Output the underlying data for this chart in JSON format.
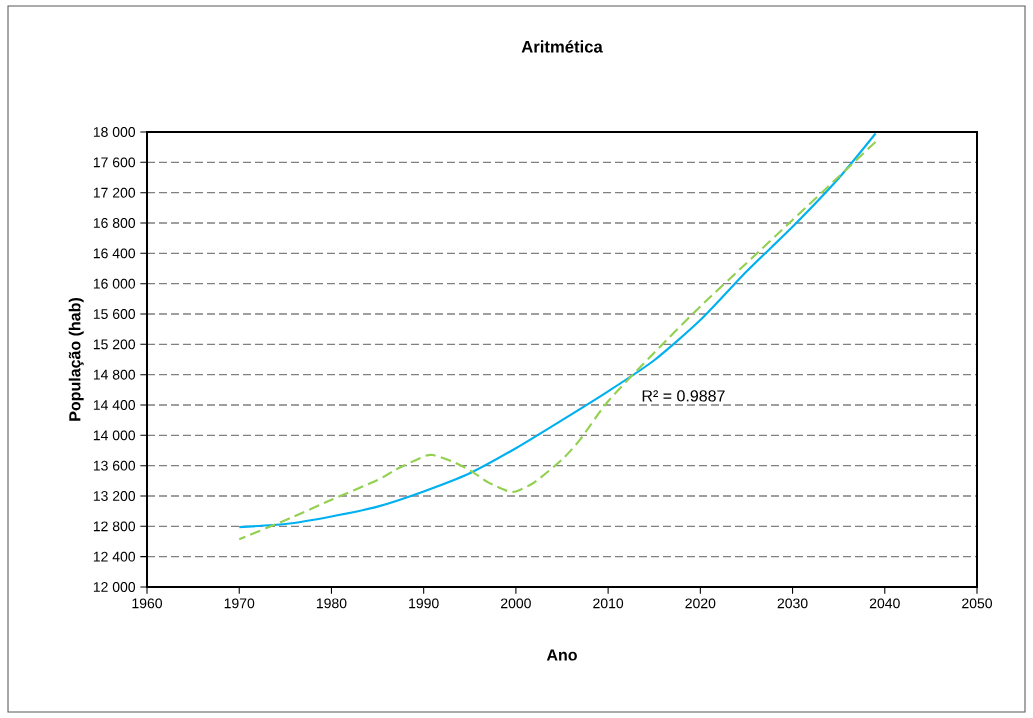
{
  "chart_data": {
    "type": "line",
    "title": "Aritmética",
    "xlabel": "Ano",
    "ylabel": "População (hab)",
    "series": [
      {
        "color": "#00b0f0",
        "line_style": "solid",
        "x": [
          1970,
          1975,
          1980,
          1985,
          1990,
          1995,
          2000,
          2005,
          2010,
          2015,
          2020,
          2025,
          2030,
          2035,
          2039
        ],
        "values": [
          12790,
          12830,
          12930,
          13060,
          13260,
          13500,
          13830,
          14200,
          14580,
          14990,
          15520,
          16160,
          16750,
          17390,
          17980
        ]
      },
      {
        "color": "#92d050",
        "line_style": "dashed",
        "x": [
          1970,
          1975,
          1980,
          1985,
          1987,
          1990,
          1991,
          1993,
          1995,
          1997,
          1999,
          2000,
          2002,
          2005,
          2007,
          2010,
          2015,
          2020,
          2025,
          2030,
          2035,
          2039
        ],
        "values": [
          12630,
          12880,
          13150,
          13410,
          13550,
          13720,
          13740,
          13660,
          13540,
          13380,
          13270,
          13260,
          13380,
          13680,
          13950,
          14450,
          15090,
          15700,
          16270,
          16840,
          17410,
          17870
        ]
      }
    ],
    "annotations": [
      "R² = 0.9887"
    ],
    "xlim": [
      1960,
      2050
    ],
    "xticks": [
      1960,
      1970,
      1980,
      1990,
      2000,
      2010,
      2020,
      2030,
      2040,
      2050
    ],
    "ylim": [
      12000,
      18000
    ],
    "yticks": [
      {
        "value": 12000,
        "label": "12 000"
      },
      {
        "value": 12400,
        "label": "12 400"
      },
      {
        "value": 12800,
        "label": "12 800"
      },
      {
        "value": 13200,
        "label": "13 200"
      },
      {
        "value": 13600,
        "label": "13 600"
      },
      {
        "value": 14000,
        "label": "14 000"
      },
      {
        "value": 14400,
        "label": "14 400"
      },
      {
        "value": 14800,
        "label": "14 800"
      },
      {
        "value": 15200,
        "label": "15 200"
      },
      {
        "value": 15600,
        "label": "15 600"
      },
      {
        "value": 16000,
        "label": "16 000"
      },
      {
        "value": 16400,
        "label": "16 400"
      },
      {
        "value": 16800,
        "label": "16 800"
      },
      {
        "value": 17200,
        "label": "17 200"
      },
      {
        "value": 17600,
        "label": "17 600"
      },
      {
        "value": 18000,
        "label": "18 000"
      }
    ],
    "grid": "y",
    "marker": "none"
  }
}
